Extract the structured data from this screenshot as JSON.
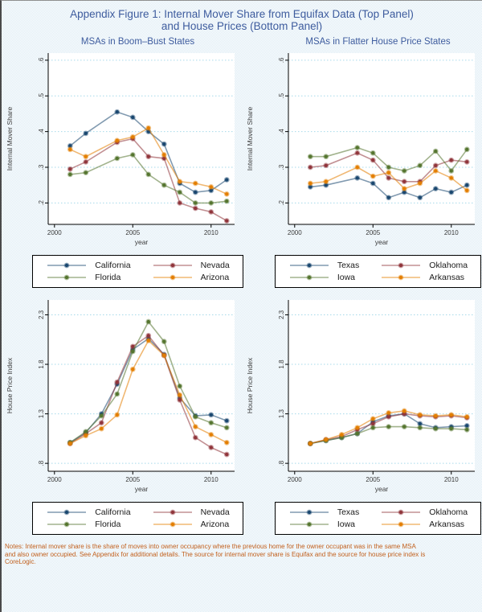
{
  "page": {
    "title_line1": "Appendix Figure 1: Internal Mover Share from Equifax Data (Top Panel)",
    "title_line2": "and House Prices (Bottom Panel)",
    "notes_line1": "Notes: Internal mover share is the share of moves into owner occupancy where the previous home for the owner occupant was in the same MSA",
    "notes_line2": "and also owner occupied.  See Appendix for additional details.  The source for internal mover share is Equifax and the source for house price index is",
    "notes_line3": "CoreLogic."
  },
  "colors": {
    "navy": "#1A476F",
    "maroon": "#90353B",
    "forest": "#55752F",
    "orange": "#E37E00",
    "grid": "#a6d9ea",
    "title_blue": "#3E5C9E",
    "axis_text": "#3a3a3a",
    "notes_orange": "#C2601D"
  },
  "chart_data": [
    {
      "type": "line",
      "title": "MSAs in Boom–Bust States",
      "ylabel": "Internal Mover Share",
      "xlabel": "year",
      "ylim": [
        0.14,
        0.62
      ],
      "ytick_values": [
        0.2,
        0.3,
        0.4,
        0.5,
        0.6
      ],
      "ytick_labels": [
        ".2",
        ".3",
        ".4",
        ".5",
        ".6"
      ],
      "xlim": [
        1999.6,
        2011.5
      ],
      "xtick_values": [
        2000,
        2005,
        2010
      ],
      "xtick_labels": [
        "2000",
        "2005",
        "2010"
      ],
      "grid": true,
      "legend_position": "bottom",
      "x": [
        2001,
        2002,
        2004,
        2005,
        2006,
        2007,
        2008,
        2009,
        2010,
        2011
      ],
      "series": [
        {
          "name": "California",
          "color_key": "navy",
          "values": [
            0.36,
            0.395,
            0.455,
            0.44,
            0.4,
            0.365,
            0.255,
            0.23,
            0.235,
            0.265
          ]
        },
        {
          "name": "Nevada",
          "color_key": "maroon",
          "values": [
            0.295,
            0.315,
            0.37,
            0.38,
            0.33,
            0.325,
            0.2,
            0.185,
            0.175,
            0.15
          ]
        },
        {
          "name": "Florida",
          "color_key": "forest",
          "values": [
            0.28,
            0.285,
            0.325,
            0.335,
            0.28,
            0.25,
            0.23,
            0.2,
            0.2,
            0.205
          ]
        },
        {
          "name": "Arizona",
          "color_key": "orange",
          "values": [
            0.35,
            0.33,
            0.375,
            0.385,
            0.41,
            0.335,
            0.26,
            0.255,
            0.245,
            0.225
          ]
        }
      ]
    },
    {
      "type": "line",
      "title": "MSAs in Flatter House Price States",
      "ylabel": "Internal Mover Share",
      "xlabel": "year",
      "ylim": [
        0.14,
        0.62
      ],
      "ytick_values": [
        0.2,
        0.3,
        0.4,
        0.5,
        0.6
      ],
      "ytick_labels": [
        ".2",
        ".3",
        ".4",
        ".5",
        ".6"
      ],
      "xlim": [
        1999.6,
        2011.5
      ],
      "xtick_values": [
        2000,
        2005,
        2010
      ],
      "xtick_labels": [
        "2000",
        "2005",
        "2010"
      ],
      "grid": true,
      "legend_position": "bottom",
      "x": [
        2001,
        2002,
        2004,
        2005,
        2006,
        2007,
        2008,
        2009,
        2010,
        2011
      ],
      "series": [
        {
          "name": "Texas",
          "color_key": "navy",
          "values": [
            0.245,
            0.25,
            0.27,
            0.255,
            0.215,
            0.23,
            0.215,
            0.24,
            0.23,
            0.25
          ]
        },
        {
          "name": "Oklahoma",
          "color_key": "maroon",
          "values": [
            0.3,
            0.305,
            0.34,
            0.32,
            0.27,
            0.26,
            0.26,
            0.305,
            0.32,
            0.315
          ]
        },
        {
          "name": "Iowa",
          "color_key": "forest",
          "values": [
            0.33,
            0.33,
            0.355,
            0.34,
            0.3,
            0.29,
            0.305,
            0.345,
            0.29,
            0.35
          ]
        },
        {
          "name": "Arkansas",
          "color_key": "orange",
          "values": [
            0.255,
            0.26,
            0.3,
            0.275,
            0.285,
            0.24,
            0.255,
            0.29,
            0.27,
            0.235
          ]
        }
      ]
    },
    {
      "type": "line",
      "title": "",
      "ylabel": "House Price Index",
      "xlabel": "year",
      "ylim": [
        0.72,
        2.45
      ],
      "ytick_values": [
        0.8,
        1.3,
        1.8,
        2.3
      ],
      "ytick_labels": [
        ".8",
        "1.3",
        "1.8",
        "2.3"
      ],
      "xlim": [
        1999.6,
        2011.5
      ],
      "xtick_values": [
        2000,
        2005,
        2010
      ],
      "xtick_labels": [
        "2000",
        "2005",
        "2010"
      ],
      "grid": true,
      "legend_position": "bottom",
      "x": [
        2001,
        2002,
        2003,
        2004,
        2005,
        2006,
        2007,
        2008,
        2009,
        2010,
        2011
      ],
      "series": [
        {
          "name": "California",
          "color_key": "navy",
          "values": [
            1.01,
            1.11,
            1.3,
            1.6,
            1.95,
            2.06,
            1.9,
            1.46,
            1.28,
            1.29,
            1.23
          ]
        },
        {
          "name": "Nevada",
          "color_key": "maroon",
          "values": [
            1.0,
            1.1,
            1.21,
            1.62,
            1.98,
            2.09,
            1.89,
            1.44,
            1.06,
            0.96,
            0.89
          ]
        },
        {
          "name": "Florida",
          "color_key": "forest",
          "values": [
            1.01,
            1.12,
            1.28,
            1.5,
            1.93,
            2.23,
            2.03,
            1.58,
            1.27,
            1.21,
            1.16
          ]
        },
        {
          "name": "Arizona",
          "color_key": "orange",
          "values": [
            1.0,
            1.08,
            1.15,
            1.29,
            1.75,
            2.04,
            1.89,
            1.49,
            1.17,
            1.09,
            1.01
          ]
        }
      ]
    },
    {
      "type": "line",
      "title": "",
      "ylabel": "House Price Index",
      "xlabel": "year",
      "ylim": [
        0.72,
        2.45
      ],
      "ytick_values": [
        0.8,
        1.3,
        1.8,
        2.3
      ],
      "ytick_labels": [
        ".8",
        "1.3",
        "1.8",
        "2.3"
      ],
      "xlim": [
        1999.6,
        2011.5
      ],
      "xtick_values": [
        2000,
        2005,
        2010
      ],
      "xtick_labels": [
        "2000",
        "2005",
        "2010"
      ],
      "grid": true,
      "legend_position": "bottom",
      "x": [
        2001,
        2002,
        2003,
        2004,
        2005,
        2006,
        2007,
        2008,
        2009,
        2010,
        2011
      ],
      "series": [
        {
          "name": "Texas",
          "color_key": "navy",
          "values": [
            1.0,
            1.03,
            1.06,
            1.1,
            1.22,
            1.28,
            1.3,
            1.2,
            1.16,
            1.17,
            1.18
          ]
        },
        {
          "name": "Oklahoma",
          "color_key": "maroon",
          "values": [
            1.0,
            1.04,
            1.07,
            1.14,
            1.2,
            1.27,
            1.3,
            1.28,
            1.27,
            1.28,
            1.26
          ]
        },
        {
          "name": "Iowa",
          "color_key": "forest",
          "values": [
            1.0,
            1.03,
            1.06,
            1.1,
            1.16,
            1.17,
            1.17,
            1.16,
            1.15,
            1.15,
            1.14
          ]
        },
        {
          "name": "Arkansas",
          "color_key": "orange",
          "values": [
            1.0,
            1.04,
            1.09,
            1.16,
            1.25,
            1.31,
            1.33,
            1.29,
            1.28,
            1.29,
            1.27
          ]
        }
      ]
    }
  ]
}
